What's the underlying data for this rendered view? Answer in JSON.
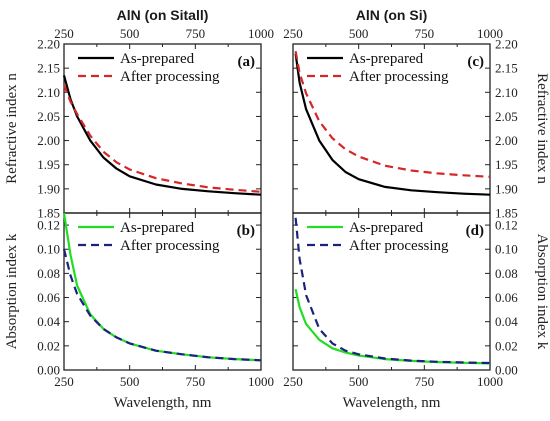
{
  "chart_data": [
    {
      "id": "a",
      "type": "line",
      "panel_label": "(a)",
      "column_title": "AlN (on Sitall)",
      "ylabel": "Refractive index n",
      "xlabel": "",
      "xlim": [
        250,
        1000
      ],
      "ylim": [
        1.85,
        2.2
      ],
      "x_ticks": [
        "250",
        "500",
        "750",
        "1000"
      ],
      "y_ticks": [
        "1.85",
        "1.90",
        "1.95",
        "2.00",
        "2.05",
        "2.10",
        "2.15",
        "2.20"
      ],
      "x": [
        250,
        275,
        300,
        350,
        400,
        450,
        500,
        600,
        700,
        800,
        900,
        1000
      ],
      "series": [
        {
          "name": "As-prepared",
          "color": "#000000",
          "dash": "solid",
          "values": [
            2.135,
            2.085,
            2.05,
            2.0,
            1.965,
            1.942,
            1.926,
            1.909,
            1.9,
            1.895,
            1.891,
            1.888
          ]
        },
        {
          "name": "After processing",
          "color": "#d62728",
          "dash": "dashed",
          "values": [
            2.115,
            2.08,
            2.055,
            2.01,
            1.977,
            1.955,
            1.94,
            1.922,
            1.911,
            1.903,
            1.898,
            1.894
          ]
        }
      ]
    },
    {
      "id": "b",
      "type": "line",
      "panel_label": "(b)",
      "ylabel": "Absorption index k",
      "xlabel": "Wavelength, nm",
      "xlim": [
        250,
        1000
      ],
      "ylim": [
        0.0,
        0.13
      ],
      "x_ticks": [
        "250",
        "500",
        "750",
        "1000"
      ],
      "y_ticks": [
        "0.00",
        "0.02",
        "0.04",
        "0.06",
        "0.08",
        "0.10",
        "0.12"
      ],
      "x": [
        250,
        275,
        300,
        350,
        400,
        450,
        500,
        600,
        700,
        800,
        900,
        1000
      ],
      "series": [
        {
          "name": "As-prepared",
          "color": "#22dd22",
          "dash": "solid",
          "values": [
            0.13,
            0.095,
            0.07,
            0.046,
            0.034,
            0.027,
            0.022,
            0.016,
            0.013,
            0.0105,
            0.009,
            0.008
          ]
        },
        {
          "name": "After processing",
          "color": "#1a237e",
          "dash": "dashed",
          "values": [
            0.1,
            0.078,
            0.063,
            0.045,
            0.034,
            0.027,
            0.022,
            0.016,
            0.013,
            0.0105,
            0.009,
            0.008
          ]
        }
      ]
    },
    {
      "id": "c",
      "type": "line",
      "panel_label": "(c)",
      "column_title": "AlN (on Si)",
      "ylabel": "Refractive index n",
      "xlabel": "",
      "xlim": [
        250,
        1000
      ],
      "ylim": [
        1.85,
        2.2
      ],
      "x_ticks": [
        "250",
        "500",
        "750",
        "1000"
      ],
      "y_ticks": [
        "1.85",
        "1.90",
        "1.95",
        "2.00",
        "2.05",
        "2.10",
        "2.15",
        "2.20"
      ],
      "x": [
        260,
        275,
        300,
        350,
        400,
        450,
        500,
        600,
        700,
        800,
        900,
        1000
      ],
      "series": [
        {
          "name": "As-prepared",
          "color": "#000000",
          "dash": "solid",
          "values": [
            2.18,
            2.12,
            2.065,
            2.0,
            1.96,
            1.935,
            1.92,
            1.904,
            1.897,
            1.893,
            1.89,
            1.888
          ]
        },
        {
          "name": "After processing",
          "color": "#d62728",
          "dash": "dashed",
          "values": [
            2.185,
            2.14,
            2.098,
            2.04,
            2.005,
            1.982,
            1.967,
            1.948,
            1.938,
            1.932,
            1.928,
            1.925
          ]
        }
      ]
    },
    {
      "id": "d",
      "type": "line",
      "panel_label": "(d)",
      "ylabel": "Absorption index k",
      "xlabel": "Wavelength, nm",
      "xlim": [
        250,
        1000
      ],
      "ylim": [
        0.0,
        0.13
      ],
      "x_ticks": [
        "250",
        "500",
        "750",
        "1000"
      ],
      "y_ticks": [
        "0.00",
        "0.02",
        "0.04",
        "0.06",
        "0.08",
        "0.10",
        "0.12"
      ],
      "x": [
        260,
        275,
        300,
        350,
        400,
        450,
        500,
        600,
        700,
        800,
        900,
        1000
      ],
      "series": [
        {
          "name": "As-prepared",
          "color": "#22dd22",
          "dash": "solid",
          "values": [
            0.067,
            0.052,
            0.038,
            0.025,
            0.018,
            0.0145,
            0.012,
            0.009,
            0.0075,
            0.0065,
            0.006,
            0.0055
          ]
        },
        {
          "name": "After processing",
          "color": "#1a237e",
          "dash": "dashed",
          "values": [
            0.126,
            0.092,
            0.062,
            0.034,
            0.022,
            0.016,
            0.013,
            0.0095,
            0.0078,
            0.0068,
            0.0062,
            0.0058
          ]
        }
      ]
    }
  ]
}
